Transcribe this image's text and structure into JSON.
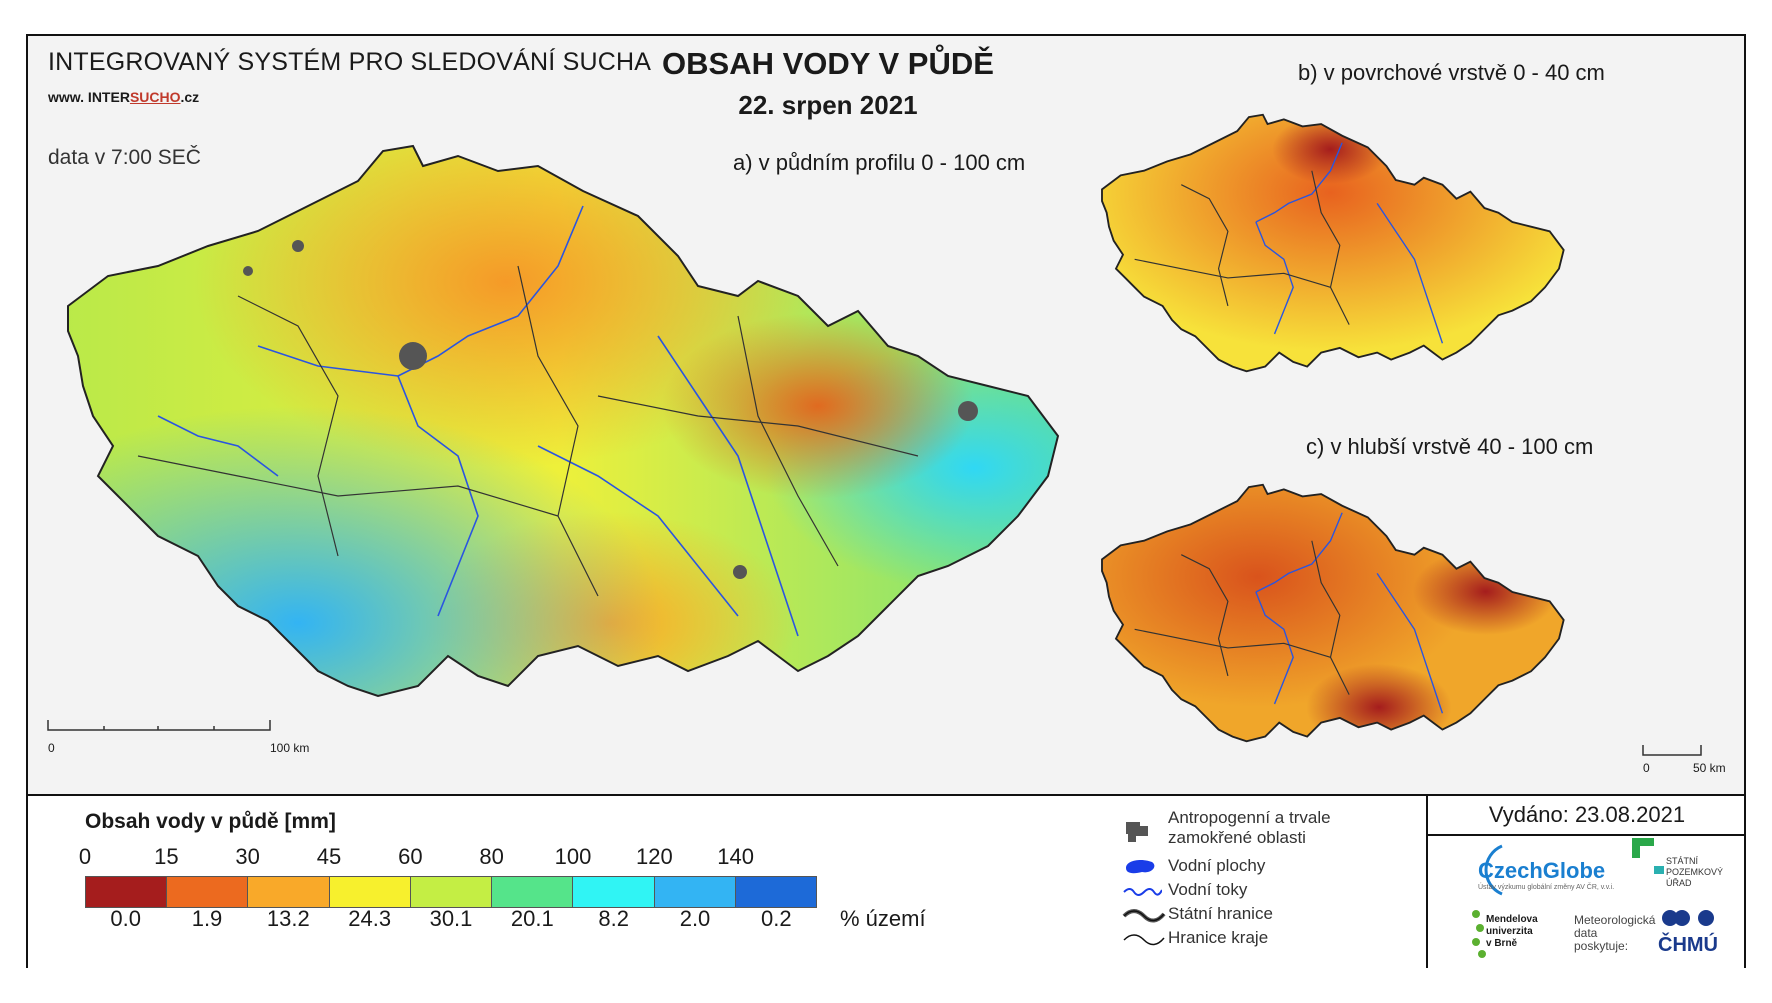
{
  "header": {
    "system_title": "INTEGROVANÝ SYSTÉM PRO SLEDOVÁNÍ SUCHA",
    "website_prefix": "www. INTER",
    "website_highlight": "SUCHO",
    "website_suffix": ".cz",
    "data_time": "data v 7:00 SEČ",
    "main_title": "OBSAH VODY V PŮDĚ",
    "date": "22. srpen 2021"
  },
  "maps": {
    "a_label": "a) v půdním profilu 0 - 100 cm",
    "b_label": "b) v povrchové vrstvě 0 - 40 cm",
    "c_label": "c) v hlubší vrstvě 40 - 100 cm"
  },
  "scale": {
    "main": [
      "0",
      "100 km"
    ],
    "small": [
      "0",
      "50 km"
    ]
  },
  "legend": {
    "title": "Obsah vody v půdě  [mm]",
    "thresholds": [
      "0",
      "15",
      "30",
      "45",
      "60",
      "80",
      "100",
      "120",
      "140"
    ],
    "colors": [
      "#a51d1d",
      "#ec6a1f",
      "#f9a929",
      "#f7f02d",
      "#c4ee44",
      "#55e48a",
      "#30f4f4",
      "#33b4f3",
      "#1d6ad8"
    ],
    "percentages": [
      "0.0",
      "1.9",
      "13.2",
      "24.3",
      "30.1",
      "20.1",
      "8.2",
      "2.0",
      "0.2"
    ],
    "percent_unit": "% území",
    "symbols": [
      {
        "label": "Antropogenní a trvale",
        "label2": "zamokřené oblasti",
        "icon": "urban-area-icon"
      },
      {
        "label": "Vodní plochy",
        "icon": "water-body-icon"
      },
      {
        "label": "Vodní toky",
        "icon": "river-icon"
      },
      {
        "label": "Státní hranice",
        "icon": "state-border-icon"
      },
      {
        "label": "Hranice kraje",
        "icon": "region-border-icon"
      }
    ]
  },
  "footer": {
    "issued": "Vydáno: 23.08.2021",
    "czechglobe": "CzechGlobe",
    "czechglobe_sub": "Ústav výzkumu globální změny AV ČR, v.v.i.",
    "spu": [
      "STÁTNÍ",
      "POZEMKOVÝ",
      "ÚŘAD"
    ],
    "mendel": [
      "Mendelova",
      "univerzita",
      "v Brně"
    ],
    "meteo": [
      "Meteorologická",
      "data",
      "poskytuje:"
    ],
    "chmu": "ČHMÚ"
  }
}
